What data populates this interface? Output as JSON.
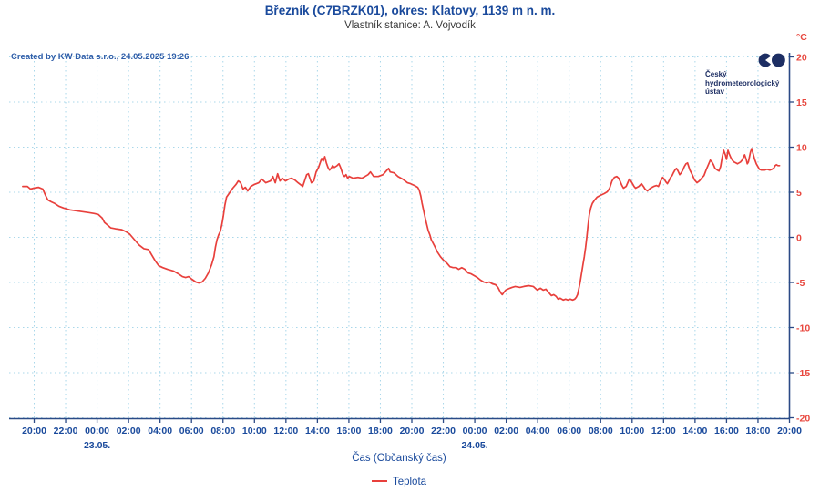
{
  "header": {
    "title": "Březník (C7BRZK01), okres: Klatovy, 1139 m n. m.",
    "subtitle": "Vlastník stanice: A. Vojvodík"
  },
  "watermark": "Created by KW Data s.r.o., 24.05.2025 19:26",
  "logo": {
    "lines": [
      "Český",
      "hydrometeorologický",
      "ústav"
    ]
  },
  "legend": {
    "series_label": "Teplota"
  },
  "colors": {
    "title_blue": "#1a4a9c",
    "axis_navy": "#2b4a86",
    "grid_light_blue": "#a9d7ea",
    "series_red": "#e8403c",
    "y_label_red": "#e8483f",
    "logo_navy": "#1d2e63"
  },
  "chart_data": {
    "type": "line",
    "title": "Březník (C7BRZK01), okres: Klatovy, 1139 m n. m.",
    "subtitle": "Vlastník stanice: A. Vojvodík",
    "xlabel": "Čas (Občanský čas)",
    "y_unit": "°C",
    "ylim": [
      -20,
      20
    ],
    "y_tick_step": 5,
    "y_ticks": [
      20,
      15,
      10,
      5,
      0,
      -5,
      -10,
      -15,
      -20
    ],
    "x_axis": {
      "tick_interval_hours": 2,
      "hours_span": 48,
      "tick_labels": [
        "20:00",
        "22:00",
        "00:00",
        "02:00",
        "04:00",
        "06:00",
        "08:00",
        "10:00",
        "12:00",
        "14:00",
        "16:00",
        "18:00",
        "20:00",
        "22:00",
        "00:00",
        "02:00",
        "04:00",
        "06:00",
        "08:00",
        "10:00",
        "12:00",
        "14:00",
        "16:00",
        "18:00",
        "20:00"
      ],
      "date_markers": [
        {
          "label": "23.05.",
          "tick_index": 2
        },
        {
          "label": "24.05.",
          "tick_index": 14
        }
      ]
    },
    "grid": true,
    "legend_position": "bottom",
    "series": [
      {
        "name": "Teplota",
        "color": "#e8403c",
        "points_x_unit": "hours_since_first_tick",
        "points": [
          [
            -0.7,
            5.6
          ],
          [
            -0.4,
            5.6
          ],
          [
            -0.2,
            5.3
          ],
          [
            0,
            5.4
          ],
          [
            0.3,
            5.5
          ],
          [
            0.58,
            5.3
          ],
          [
            0.75,
            4.6
          ],
          [
            0.9,
            4.1
          ],
          [
            1.1,
            3.9
          ],
          [
            1.35,
            3.7
          ],
          [
            1.6,
            3.4
          ],
          [
            1.9,
            3.2
          ],
          [
            2.3,
            3.0
          ],
          [
            2.7,
            2.9
          ],
          [
            3.1,
            2.8
          ],
          [
            3.5,
            2.7
          ],
          [
            3.85,
            2.6
          ],
          [
            4.1,
            2.5
          ],
          [
            4.35,
            2.1
          ],
          [
            4.5,
            1.6
          ],
          [
            4.7,
            1.3
          ],
          [
            4.9,
            1.0
          ],
          [
            5.2,
            0.9
          ],
          [
            5.6,
            0.8
          ],
          [
            5.85,
            0.6
          ],
          [
            6.1,
            0.3
          ],
          [
            6.4,
            -0.3
          ],
          [
            6.7,
            -0.9
          ],
          [
            7.0,
            -1.3
          ],
          [
            7.3,
            -1.4
          ],
          [
            7.5,
            -2.0
          ],
          [
            7.7,
            -2.6
          ],
          [
            7.95,
            -3.2
          ],
          [
            8.2,
            -3.4
          ],
          [
            8.5,
            -3.6
          ],
          [
            8.9,
            -3.8
          ],
          [
            9.2,
            -4.1
          ],
          [
            9.45,
            -4.4
          ],
          [
            9.65,
            -4.5
          ],
          [
            9.85,
            -4.4
          ],
          [
            10.05,
            -4.7
          ],
          [
            10.3,
            -5.0
          ],
          [
            10.5,
            -5.1
          ],
          [
            10.7,
            -5.0
          ],
          [
            10.9,
            -4.6
          ],
          [
            11.1,
            -4.0
          ],
          [
            11.3,
            -3.1
          ],
          [
            11.45,
            -2.2
          ],
          [
            11.55,
            -1.1
          ],
          [
            11.65,
            -0.3
          ],
          [
            11.75,
            0.2
          ],
          [
            11.85,
            0.6
          ],
          [
            11.95,
            1.3
          ],
          [
            12.05,
            2.3
          ],
          [
            12.15,
            3.5
          ],
          [
            12.25,
            4.4
          ],
          [
            12.45,
            4.9
          ],
          [
            12.65,
            5.4
          ],
          [
            12.85,
            5.8
          ],
          [
            13.0,
            6.2
          ],
          [
            13.15,
            6.0
          ],
          [
            13.3,
            5.3
          ],
          [
            13.45,
            5.5
          ],
          [
            13.6,
            5.1
          ],
          [
            13.8,
            5.6
          ],
          [
            14.0,
            5.8
          ],
          [
            14.3,
            6.0
          ],
          [
            14.5,
            6.4
          ],
          [
            14.75,
            6.0
          ],
          [
            15.05,
            6.2
          ],
          [
            15.2,
            6.7
          ],
          [
            15.35,
            6.0
          ],
          [
            15.5,
            7.0
          ],
          [
            15.65,
            6.2
          ],
          [
            15.8,
            6.5
          ],
          [
            16.0,
            6.2
          ],
          [
            16.2,
            6.4
          ],
          [
            16.4,
            6.5
          ],
          [
            16.6,
            6.3
          ],
          [
            16.8,
            6.0
          ],
          [
            16.95,
            5.8
          ],
          [
            17.1,
            5.6
          ],
          [
            17.35,
            6.9
          ],
          [
            17.45,
            7.0
          ],
          [
            17.55,
            6.5
          ],
          [
            17.65,
            6.0
          ],
          [
            17.8,
            6.2
          ],
          [
            17.95,
            7.2
          ],
          [
            18.1,
            7.7
          ],
          [
            18.3,
            8.7
          ],
          [
            18.4,
            8.4
          ],
          [
            18.5,
            8.9
          ],
          [
            18.6,
            8.2
          ],
          [
            18.7,
            7.7
          ],
          [
            18.8,
            7.4
          ],
          [
            18.9,
            7.6
          ],
          [
            19.0,
            7.9
          ],
          [
            19.1,
            7.7
          ],
          [
            19.28,
            7.9
          ],
          [
            19.4,
            8.1
          ],
          [
            19.5,
            7.7
          ],
          [
            19.65,
            6.9
          ],
          [
            19.75,
            6.7
          ],
          [
            19.85,
            6.9
          ],
          [
            19.95,
            6.5
          ],
          [
            20.05,
            6.7
          ],
          [
            20.3,
            6.5
          ],
          [
            20.6,
            6.6
          ],
          [
            20.85,
            6.5
          ],
          [
            21.05,
            6.7
          ],
          [
            21.25,
            6.9
          ],
          [
            21.4,
            7.2
          ],
          [
            21.6,
            6.7
          ],
          [
            21.9,
            6.7
          ],
          [
            22.2,
            6.9
          ],
          [
            22.55,
            7.6
          ],
          [
            22.65,
            7.2
          ],
          [
            22.9,
            7.1
          ],
          [
            23.15,
            6.7
          ],
          [
            23.45,
            6.4
          ],
          [
            23.75,
            6.0
          ],
          [
            23.95,
            5.9
          ],
          [
            24.2,
            5.7
          ],
          [
            24.4,
            5.5
          ],
          [
            24.5,
            5.2
          ],
          [
            24.6,
            4.5
          ],
          [
            24.67,
            3.8
          ],
          [
            24.78,
            2.9
          ],
          [
            24.88,
            2.1
          ],
          [
            24.97,
            1.4
          ],
          [
            25.07,
            0.7
          ],
          [
            25.18,
            0.2
          ],
          [
            25.26,
            -0.3
          ],
          [
            25.47,
            -1.0
          ],
          [
            25.66,
            -1.7
          ],
          [
            25.85,
            -2.2
          ],
          [
            26.05,
            -2.6
          ],
          [
            26.25,
            -2.9
          ],
          [
            26.45,
            -3.3
          ],
          [
            26.65,
            -3.4
          ],
          [
            26.85,
            -3.4
          ],
          [
            27.0,
            -3.6
          ],
          [
            27.2,
            -3.4
          ],
          [
            27.4,
            -3.6
          ],
          [
            27.6,
            -4.0
          ],
          [
            27.8,
            -4.1
          ],
          [
            28.0,
            -4.3
          ],
          [
            28.2,
            -4.5
          ],
          [
            28.4,
            -4.8
          ],
          [
            28.6,
            -5.0
          ],
          [
            28.78,
            -5.1
          ],
          [
            28.95,
            -5.0
          ],
          [
            29.15,
            -5.2
          ],
          [
            29.35,
            -5.3
          ],
          [
            29.5,
            -5.6
          ],
          [
            29.68,
            -6.2
          ],
          [
            29.78,
            -6.4
          ],
          [
            29.9,
            -6.1
          ],
          [
            30.0,
            -5.9
          ],
          [
            30.25,
            -5.7
          ],
          [
            30.4,
            -5.6
          ],
          [
            30.6,
            -5.5
          ],
          [
            30.9,
            -5.6
          ],
          [
            31.15,
            -5.5
          ],
          [
            31.45,
            -5.4
          ],
          [
            31.75,
            -5.5
          ],
          [
            32.0,
            -5.9
          ],
          [
            32.2,
            -5.7
          ],
          [
            32.38,
            -5.9
          ],
          [
            32.55,
            -5.8
          ],
          [
            32.75,
            -6.2
          ],
          [
            32.9,
            -6.5
          ],
          [
            33.05,
            -6.4
          ],
          [
            33.2,
            -6.6
          ],
          [
            33.32,
            -6.9
          ],
          [
            33.45,
            -6.8
          ],
          [
            33.65,
            -7.0
          ],
          [
            33.8,
            -6.9
          ],
          [
            33.95,
            -7.0
          ],
          [
            34.1,
            -6.9
          ],
          [
            34.25,
            -7.0
          ],
          [
            34.38,
            -6.9
          ],
          [
            34.48,
            -6.7
          ],
          [
            34.56,
            -6.4
          ],
          [
            34.65,
            -5.7
          ],
          [
            34.73,
            -5.0
          ],
          [
            34.81,
            -4.1
          ],
          [
            34.9,
            -3.1
          ],
          [
            34.99,
            -2.2
          ],
          [
            35.07,
            -1.2
          ],
          [
            35.15,
            0.0
          ],
          [
            35.22,
            1.2
          ],
          [
            35.3,
            2.4
          ],
          [
            35.4,
            3.2
          ],
          [
            35.5,
            3.7
          ],
          [
            35.65,
            4.1
          ],
          [
            35.8,
            4.4
          ],
          [
            36.0,
            4.6
          ],
          [
            36.25,
            4.8
          ],
          [
            36.45,
            5.0
          ],
          [
            36.6,
            5.4
          ],
          [
            36.75,
            6.2
          ],
          [
            36.9,
            6.6
          ],
          [
            37.05,
            6.7
          ],
          [
            37.18,
            6.5
          ],
          [
            37.28,
            6.1
          ],
          [
            37.38,
            5.7
          ],
          [
            37.48,
            5.4
          ],
          [
            37.65,
            5.6
          ],
          [
            37.85,
            6.4
          ],
          [
            37.95,
            6.2
          ],
          [
            38.05,
            5.9
          ],
          [
            38.15,
            5.6
          ],
          [
            38.25,
            5.4
          ],
          [
            38.45,
            5.6
          ],
          [
            38.62,
            5.9
          ],
          [
            38.75,
            5.6
          ],
          [
            38.85,
            5.3
          ],
          [
            39.0,
            5.1
          ],
          [
            39.2,
            5.4
          ],
          [
            39.4,
            5.6
          ],
          [
            39.58,
            5.7
          ],
          [
            39.7,
            5.6
          ],
          [
            39.85,
            6.2
          ],
          [
            39.97,
            6.6
          ],
          [
            40.07,
            6.4
          ],
          [
            40.17,
            6.1
          ],
          [
            40.27,
            5.9
          ],
          [
            40.37,
            6.2
          ],
          [
            40.47,
            6.6
          ],
          [
            40.57,
            6.8
          ],
          [
            40.65,
            7.1
          ],
          [
            40.75,
            7.4
          ],
          [
            40.85,
            7.6
          ],
          [
            40.95,
            7.3
          ],
          [
            41.05,
            6.9
          ],
          [
            41.15,
            7.1
          ],
          [
            41.25,
            7.4
          ],
          [
            41.35,
            7.8
          ],
          [
            41.45,
            8.1
          ],
          [
            41.55,
            8.2
          ],
          [
            41.7,
            7.4
          ],
          [
            41.85,
            6.9
          ],
          [
            42.0,
            6.3
          ],
          [
            42.15,
            6.0
          ],
          [
            42.3,
            6.2
          ],
          [
            42.45,
            6.5
          ],
          [
            42.6,
            6.8
          ],
          [
            42.75,
            7.5
          ],
          [
            42.9,
            8.1
          ],
          [
            43.0,
            8.5
          ],
          [
            43.1,
            8.3
          ],
          [
            43.2,
            8.0
          ],
          [
            43.3,
            7.6
          ],
          [
            43.45,
            7.4
          ],
          [
            43.55,
            7.3
          ],
          [
            43.65,
            7.8
          ],
          [
            43.75,
            8.8
          ],
          [
            43.85,
            9.6
          ],
          [
            43.95,
            9.1
          ],
          [
            44.03,
            8.6
          ],
          [
            44.12,
            9.6
          ],
          [
            44.2,
            9.2
          ],
          [
            44.3,
            8.8
          ],
          [
            44.4,
            8.5
          ],
          [
            44.5,
            8.3
          ],
          [
            44.62,
            8.2
          ],
          [
            44.72,
            8.1
          ],
          [
            44.82,
            8.2
          ],
          [
            44.92,
            8.3
          ],
          [
            45.02,
            8.5
          ],
          [
            45.1,
            8.8
          ],
          [
            45.18,
            9.1
          ],
          [
            45.28,
            8.6
          ],
          [
            45.35,
            8.1
          ],
          [
            45.42,
            8.3
          ],
          [
            45.55,
            9.4
          ],
          [
            45.63,
            9.8
          ],
          [
            45.72,
            9.2
          ],
          [
            45.82,
            8.6
          ],
          [
            45.92,
            8.1
          ],
          [
            46.02,
            7.8
          ],
          [
            46.12,
            7.5
          ],
          [
            46.25,
            7.4
          ],
          [
            46.45,
            7.4
          ],
          [
            46.6,
            7.5
          ],
          [
            46.78,
            7.4
          ],
          [
            46.92,
            7.5
          ],
          [
            47.02,
            7.6
          ],
          [
            47.12,
            7.9
          ],
          [
            47.2,
            8.0
          ],
          [
            47.3,
            7.9
          ],
          [
            47.4,
            7.9
          ]
        ]
      }
    ]
  }
}
